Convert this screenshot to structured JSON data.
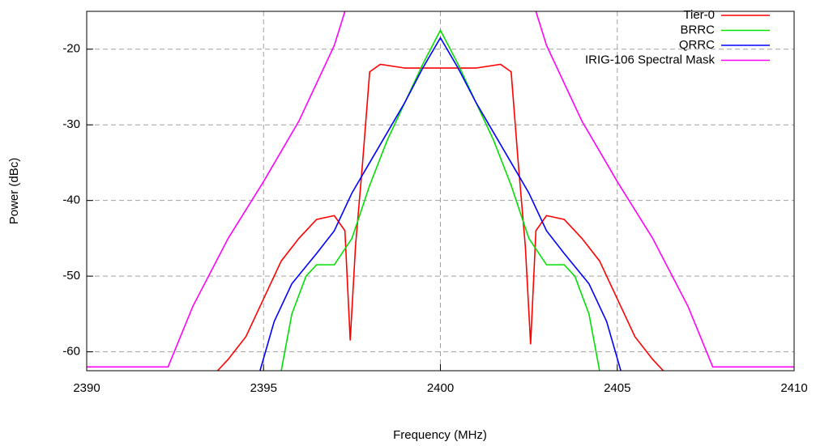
{
  "chart_data": {
    "type": "line",
    "x_label": "Frequency (MHz)",
    "y_label": "Power (dBc)",
    "xlim": [
      2390,
      2410
    ],
    "ylim": [
      -62.5,
      -15
    ],
    "xticks": [
      2390,
      2395,
      2400,
      2405,
      2410
    ],
    "yticks": [
      -60,
      -50,
      -40,
      -30,
      -20
    ],
    "grid": true,
    "legend": "top-right",
    "series": [
      {
        "name": "Tier-0",
        "color": "#ff0000",
        "x": [
          2393.7,
          2394,
          2394.5,
          2395,
          2395.5,
          2396,
          2396.5,
          2397,
          2397.3,
          2397.45,
          2397.6,
          2397.8,
          2398,
          2398.3,
          2399,
          2400,
          2401,
          2401.7,
          2402,
          2402.2,
          2402.4,
          2402.55,
          2402.7,
          2403,
          2403.5,
          2404,
          2404.5,
          2405,
          2405.5,
          2406,
          2406.3
        ],
        "values": [
          -62.5,
          -61,
          -58,
          -53,
          -48,
          -45,
          -42.5,
          -42,
          -44,
          -58.5,
          -46,
          -35,
          -23,
          -22,
          -22.5,
          -22.5,
          -22.5,
          -22,
          -23,
          -35,
          -46,
          -59,
          -44,
          -42,
          -42.5,
          -45,
          -48,
          -53,
          -58,
          -61,
          -62.5
        ]
      },
      {
        "name": "BRRC",
        "color": "#00e000",
        "x": [
          2395.5,
          2395.8,
          2396.2,
          2396.5,
          2397,
          2397.5,
          2398,
          2398.5,
          2399,
          2399.5,
          2400,
          2400.5,
          2401,
          2401.5,
          2402,
          2402.5,
          2403,
          2403.5,
          2403.8,
          2404.2,
          2404.5
        ],
        "values": [
          -62.5,
          -55,
          -50,
          -48.5,
          -48.5,
          -45,
          -38,
          -32,
          -27,
          -22,
          -17.5,
          -22,
          -27,
          -32,
          -38,
          -45,
          -48.5,
          -48.5,
          -50,
          -55,
          -62.5
        ]
      },
      {
        "name": "QRRC",
        "color": "#0000ff",
        "x": [
          2394.9,
          2395.3,
          2395.8,
          2396.5,
          2397,
          2397.5,
          2398,
          2398.5,
          2399,
          2399.5,
          2400,
          2400.5,
          2401,
          2401.5,
          2402,
          2402.5,
          2403,
          2403.5,
          2404.2,
          2404.7,
          2405.1
        ],
        "values": [
          -62.5,
          -56,
          -51,
          -47,
          -44,
          -39,
          -35,
          -31,
          -27,
          -22.5,
          -18.5,
          -22.5,
          -27,
          -31,
          -35,
          -39,
          -44,
          -47,
          -51,
          -56,
          -62.5
        ]
      },
      {
        "name": "IRIG-106 Spectral Mask",
        "color": "#ff00ff",
        "x": [
          2390,
          2392.3,
          2393,
          2394,
          2395,
          2396,
          2397,
          2397.3,
          2400,
          2402.7,
          2403,
          2404,
          2405,
          2406,
          2407,
          2407.7,
          2410
        ],
        "values": [
          -62,
          -62,
          -54,
          -45,
          -37.5,
          -29.5,
          -19.5,
          -15,
          null,
          -15,
          -19.5,
          -29.5,
          -37.5,
          -45,
          -54,
          -62,
          -62
        ]
      }
    ]
  }
}
